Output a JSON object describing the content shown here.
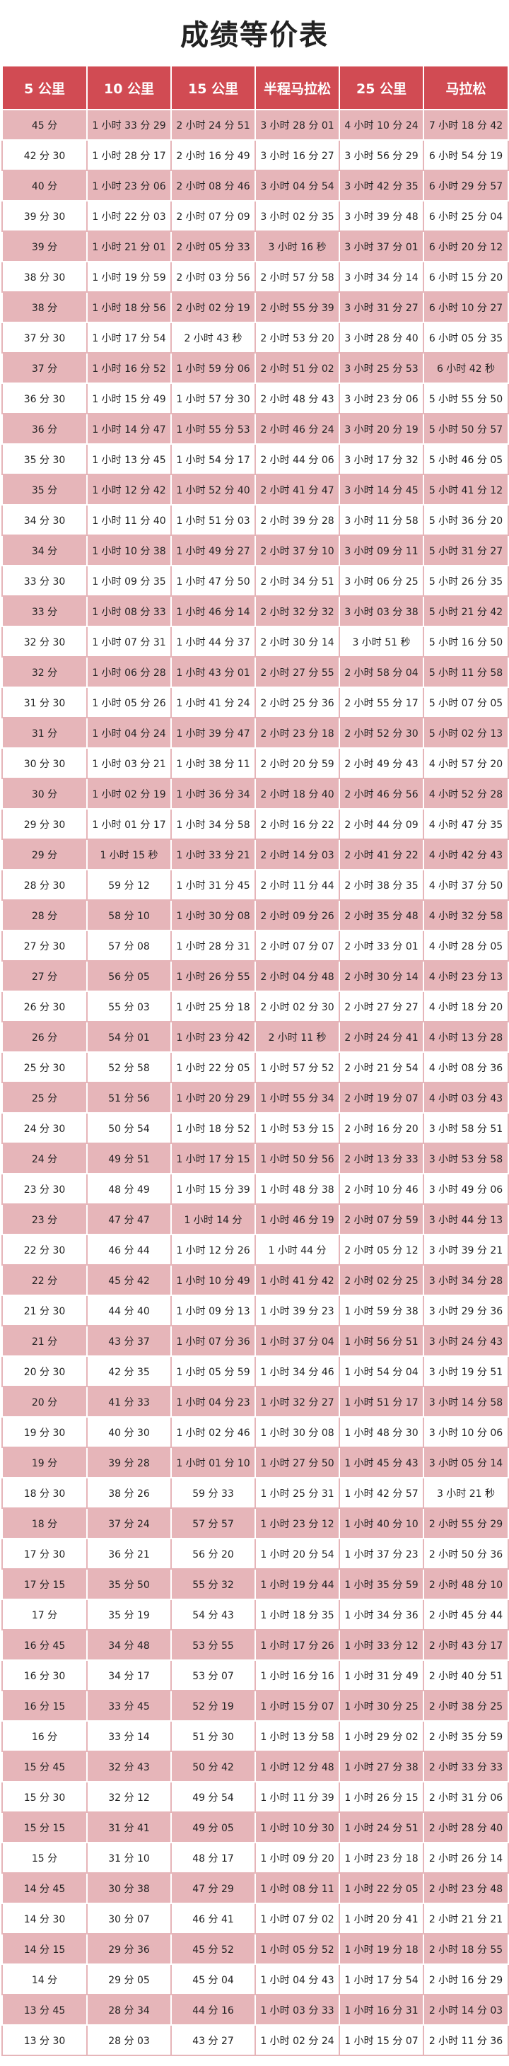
{
  "title": "成绩等价表",
  "headers": [
    "5 公里",
    "10 公里",
    "15 公里",
    "半程马拉松",
    "25 公里",
    "马拉松"
  ],
  "rows": [
    [
      "45 分",
      "1 小时 33 分 29",
      "2 小时 24 分 51",
      "3 小时 28 分 01",
      "4 小时 10 分 24",
      "7 小时 18 分 42"
    ],
    [
      "42 分 30",
      "1 小时 28 分 17",
      "2 小时 16 分 49",
      "3 小时 16 分 27",
      "3 小时 56 分 29",
      "6 小时 54 分 19"
    ],
    [
      "40 分",
      "1 小时 23 分 06",
      "2 小时 08 分 46",
      "3 小时 04 分 54",
      "3 小时 42 分 35",
      "6 小时 29 分 57"
    ],
    [
      "39 分 30",
      "1 小时 22 分 03",
      "2 小时 07 分 09",
      "3 小时 02 分 35",
      "3 小时 39 分 48",
      "6 小时 25 分 04"
    ],
    [
      "39 分",
      "1 小时 21 分 01",
      "2 小时 05 分 33",
      "3 小时 16 秒",
      "3 小时 37 分 01",
      "6 小时 20 分 12"
    ],
    [
      "38 分 30",
      "1 小时 19 分 59",
      "2 小时 03 分 56",
      "2 小时 57 分 58",
      "3 小时 34 分 14",
      "6 小时 15 分 20"
    ],
    [
      "38 分",
      "1 小时 18 分 56",
      "2 小时 02 分 19",
      "2 小时 55 分 39",
      "3 小时 31 分 27",
      "6 小时 10 分 27"
    ],
    [
      "37 分 30",
      "1 小时 17 分 54",
      "2 小时 43 秒",
      "2 小时 53 分 20",
      "3 小时 28 分 40",
      "6 小时 05 分 35"
    ],
    [
      "37 分",
      "1 小时 16 分 52",
      "1 小时 59 分 06",
      "2 小时 51 分 02",
      "3 小时 25 分 53",
      "6 小时 42 秒"
    ],
    [
      "36 分 30",
      "1 小时 15 分 49",
      "1 小时 57 分 30",
      "2 小时 48 分 43",
      "3 小时 23 分 06",
      "5 小时 55 分 50"
    ],
    [
      "36 分",
      "1 小时 14 分 47",
      "1 小时 55 分 53",
      "2 小时 46 分 24",
      "3 小时 20 分 19",
      "5 小时 50 分 57"
    ],
    [
      "35 分 30",
      "1 小时 13 分 45",
      "1 小时 54 分 17",
      "2 小时 44 分 06",
      "3 小时 17 分 32",
      "5 小时 46 分 05"
    ],
    [
      "35 分",
      "1 小时 12 分 42",
      "1 小时 52 分 40",
      "2 小时 41 分 47",
      "3 小时 14 分 45",
      "5 小时 41 分 12"
    ],
    [
      "34 分 30",
      "1 小时 11 分 40",
      "1 小时 51 分 03",
      "2 小时 39 分 28",
      "3 小时 11 分 58",
      "5 小时 36 分 20"
    ],
    [
      "34 分",
      "1 小时 10 分 38",
      "1 小时 49 分 27",
      "2 小时 37 分 10",
      "3 小时 09 分 11",
      "5 小时 31 分 27"
    ],
    [
      "33 分 30",
      "1 小时 09 分 35",
      "1 小时 47 分 50",
      "2 小时 34 分 51",
      "3 小时 06 分 25",
      "5 小时 26 分 35"
    ],
    [
      "33 分",
      "1 小时 08 分 33",
      "1 小时 46 分 14",
      "2 小时 32 分 32",
      "3 小时 03 分 38",
      "5 小时 21 分 42"
    ],
    [
      "32 分 30",
      "1 小时 07 分 31",
      "1 小时 44 分 37",
      "2 小时 30 分 14",
      "3 小时 51 秒",
      "5 小时 16 分 50"
    ],
    [
      "32 分",
      "1 小时 06 分 28",
      "1 小时 43 分 01",
      "2 小时 27 分 55",
      "2 小时 58 分 04",
      "5 小时 11 分 58"
    ],
    [
      "31 分 30",
      "1 小时 05 分 26",
      "1 小时 41 分 24",
      "2 小时 25 分 36",
      "2 小时 55 分 17",
      "5 小时 07 分 05"
    ],
    [
      "31 分",
      "1 小时 04 分 24",
      "1 小时 39 分 47",
      "2 小时 23 分 18",
      "2 小时 52 分 30",
      "5 小时 02 分 13"
    ],
    [
      "30 分 30",
      "1 小时 03 分 21",
      "1 小时 38 分 11",
      "2 小时 20 分 59",
      "2 小时 49 分 43",
      "4 小时 57 分 20"
    ],
    [
      "30 分",
      "1 小时 02 分 19",
      "1 小时 36 分 34",
      "2 小时 18 分 40",
      "2 小时 46 分 56",
      "4 小时 52 分 28"
    ],
    [
      "29 分 30",
      "1 小时 01 分 17",
      "1 小时 34 分 58",
      "2 小时 16 分 22",
      "2 小时 44 分 09",
      "4 小时 47 分 35"
    ],
    [
      "29 分",
      "1 小时 15 秒",
      "1 小时 33 分 21",
      "2 小时 14 分 03",
      "2 小时 41 分 22",
      "4 小时 42 分 43"
    ],
    [
      "28 分 30",
      "59 分 12",
      "1 小时 31 分 45",
      "2 小时 11 分 44",
      "2 小时 38 分 35",
      "4 小时 37 分 50"
    ],
    [
      "28 分",
      "58 分 10",
      "1 小时 30 分 08",
      "2 小时 09 分 26",
      "2 小时 35 分 48",
      "4 小时 32 分 58"
    ],
    [
      "27 分 30",
      "57 分 08",
      "1 小时 28 分 31",
      "2 小时 07 分 07",
      "2 小时 33 分 01",
      "4 小时 28 分 05"
    ],
    [
      "27 分",
      "56 分 05",
      "1 小时 26 分 55",
      "2 小时 04 分 48",
      "2 小时 30 分 14",
      "4 小时 23 分 13"
    ],
    [
      "26 分 30",
      "55 分 03",
      "1 小时 25 分 18",
      "2 小时 02 分 30",
      "2 小时 27 分 27",
      "4 小时 18 分 20"
    ],
    [
      "26 分",
      "54 分 01",
      "1 小时 23 分 42",
      "2 小时 11 秒",
      "2 小时 24 分 41",
      "4 小时 13 分 28"
    ],
    [
      "25 分 30",
      "52 分 58",
      "1 小时 22 分 05",
      "1 小时 57 分 52",
      "2 小时 21 分 54",
      "4 小时 08 分 36"
    ],
    [
      "25 分",
      "51 分 56",
      "1 小时 20 分 29",
      "1 小时 55 分 34",
      "2 小时 19 分 07",
      "4 小时 03 分 43"
    ],
    [
      "24 分 30",
      "50 分 54",
      "1 小时 18 分 52",
      "1 小时 53 分 15",
      "2 小时 16 分 20",
      "3 小时 58 分 51"
    ],
    [
      "24 分",
      "49 分 51",
      "1 小时 17 分 15",
      "1 小时 50 分 56",
      "2 小时 13 分 33",
      "3 小时 53 分 58"
    ],
    [
      "23 分 30",
      "48 分 49",
      "1 小时 15 分 39",
      "1 小时 48 分 38",
      "2 小时 10 分 46",
      "3 小时 49 分 06"
    ],
    [
      "23 分",
      "47 分 47",
      "1 小时 14 分",
      "1 小时 46 分 19",
      "2 小时 07 分 59",
      "3 小时 44 分 13"
    ],
    [
      "22 分 30",
      "46 分 44",
      "1 小时 12 分 26",
      "1 小时 44 分",
      "2 小时 05 分 12",
      "3 小时 39 分 21"
    ],
    [
      "22 分",
      "45 分 42",
      "1 小时 10 分 49",
      "1 小时 41 分 42",
      "2 小时 02 分 25",
      "3 小时 34 分 28"
    ],
    [
      "21 分 30",
      "44 分 40",
      "1 小时 09 分 13",
      "1 小时 39 分 23",
      "1 小时 59 分 38",
      "3 小时 29 分 36"
    ],
    [
      "21 分",
      "43 分 37",
      "1 小时 07 分 36",
      "1 小时 37 分 04",
      "1 小时 56 分 51",
      "3 小时 24 分 43"
    ],
    [
      "20 分 30",
      "42 分 35",
      "1 小时 05 分 59",
      "1 小时 34 分 46",
      "1 小时 54 分 04",
      "3 小时 19 分 51"
    ],
    [
      "20 分",
      "41 分 33",
      "1 小时 04 分 23",
      "1 小时 32 分 27",
      "1 小时 51 分 17",
      "3 小时 14 分 58"
    ],
    [
      "19 分 30",
      "40 分 30",
      "1 小时 02 分 46",
      "1 小时 30 分 08",
      "1 小时 48 分 30",
      "3 小时 10 分 06"
    ],
    [
      "19 分",
      "39 分 28",
      "1 小时 01 分 10",
      "1 小时 27 分 50",
      "1 小时 45 分 43",
      "3 小时 05 分 14"
    ],
    [
      "18 分 30",
      "38 分 26",
      "59 分 33",
      "1 小时 25 分 31",
      "1 小时 42 分 57",
      "3 小时 21 秒"
    ],
    [
      "18 分",
      "37 分 24",
      "57 分 57",
      "1 小时 23 分 12",
      "1 小时 40 分 10",
      "2 小时 55 分 29"
    ],
    [
      "17 分 30",
      "36 分 21",
      "56 分 20",
      "1 小时 20 分 54",
      "1 小时 37 分 23",
      "2 小时 50 分 36"
    ],
    [
      "17 分 15",
      "35 分 50",
      "55 分 32",
      "1 小时 19 分 44",
      "1 小时 35 分 59",
      "2 小时 48 分 10"
    ],
    [
      "17 分",
      "35 分 19",
      "54 分 43",
      "1 小时 18 分 35",
      "1 小时 34 分 36",
      "2 小时 45 分 44"
    ],
    [
      "16 分 45",
      "34 分 48",
      "53 分 55",
      "1 小时 17 分 26",
      "1 小时 33 分 12",
      "2 小时 43 分 17"
    ],
    [
      "16 分 30",
      "34 分 17",
      "53 分 07",
      "1 小时 16 分 16",
      "1 小时 31 分 49",
      "2 小时 40 分 51"
    ],
    [
      "16 分 15",
      "33 分 45",
      "52 分 19",
      "1 小时 15 分 07",
      "1 小时 30 分 25",
      "2 小时 38 分 25"
    ],
    [
      "16 分",
      "33 分 14",
      "51 分 30",
      "1 小时 13 分 58",
      "1 小时 29 分 02",
      "2 小时 35 分 59"
    ],
    [
      "15 分 45",
      "32 分 43",
      "50 分 42",
      "1 小时 12 分 48",
      "1 小时 27 分 38",
      "2 小时 33 分 33"
    ],
    [
      "15 分 30",
      "32 分 12",
      "49 分 54",
      "1 小时 11 分 39",
      "1 小时 26 分 15",
      "2 小时 31 分 06"
    ],
    [
      "15 分 15",
      "31 分 41",
      "49 分 05",
      "1 小时 10 分 30",
      "1 小时 24 分 51",
      "2 小时 28 分 40"
    ],
    [
      "15 分",
      "31 分 10",
      "48 分 17",
      "1 小时 09 分 20",
      "1 小时 23 分 18",
      "2 小时 26 分 14"
    ],
    [
      "14 分 45",
      "30 分 38",
      "47 分 29",
      "1 小时 08 分 11",
      "1 小时 22 分 05",
      "2 小时 23 分 48"
    ],
    [
      "14 分 30",
      "30 分 07",
      "46 分 41",
      "1 小时 07 分 02",
      "1 小时 20 分 41",
      "2 小时 21 分 21"
    ],
    [
      "14 分 15",
      "29 分 36",
      "45 分 52",
      "1 小时 05 分 52",
      "1 小时 19 分 18",
      "2 小时 18 分 55"
    ],
    [
      "14 分",
      "29 分 05",
      "45 分 04",
      "1 小时 04 分 43",
      "1 小时 17 分 54",
      "2 小时 16 分 29"
    ],
    [
      "13 分 45",
      "28 分 34",
      "44 分 16",
      "1 小时 03 分 33",
      "1 小时 16 分 31",
      "2 小时 14 分 03"
    ],
    [
      "13 分 30",
      "28 分 03",
      "43 分 27",
      "1 小时 02 分 24",
      "1 小时 15 分 07",
      "2 小时 11 分 36"
    ]
  ]
}
